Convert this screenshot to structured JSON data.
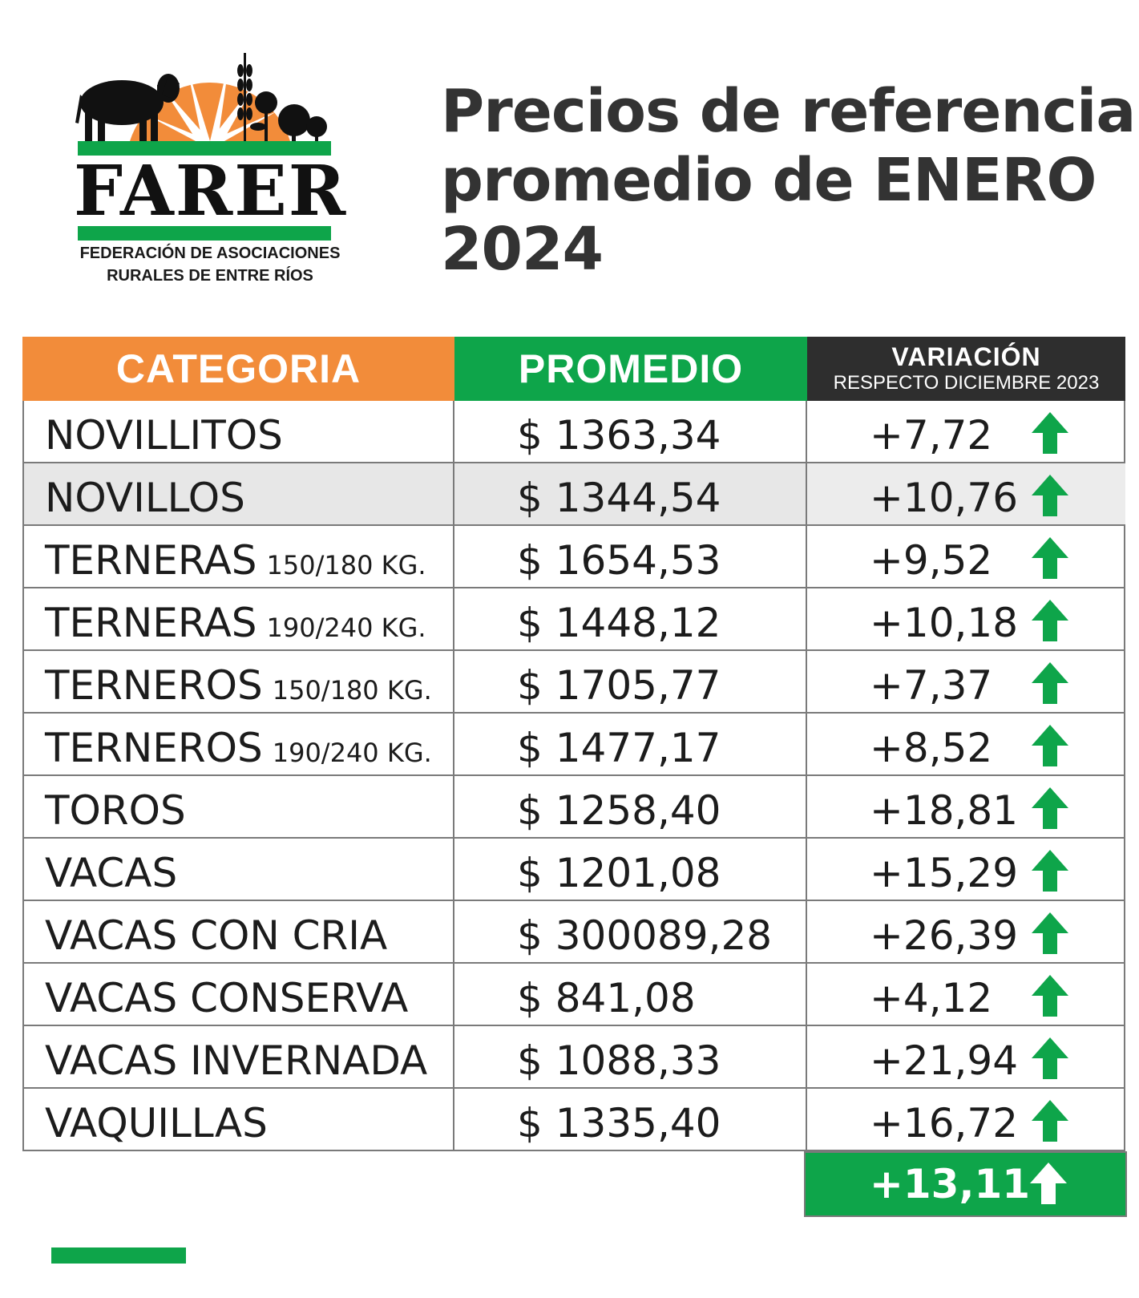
{
  "logo": {
    "name": "FARER",
    "subtitle_line1": "FEDERACIÓN DE ASOCIACIONES",
    "subtitle_line2": "RURALES DE ENTRE RÍOS",
    "colors": {
      "sun": "#f28c3a",
      "green": "#0ea54a",
      "black": "#111111"
    }
  },
  "title": {
    "line1": "Precios de referencia",
    "line2": "promedio de ENERO",
    "line3": "2024"
  },
  "table": {
    "headers": {
      "categoria": "CATEGORIA",
      "promedio": "PROMEDIO",
      "variacion": "VARIACIÓN",
      "variacion_sub": "RESPECTO DICIEMBRE 2023"
    },
    "colors": {
      "categoria": "#f28c3a",
      "promedio": "#0ea54a",
      "variacion": "#2e2e2e",
      "arrow_up": "#0ea54a"
    },
    "rows": [
      {
        "categoria": "NOVILLITOS",
        "detalle": "",
        "promedio": "$ 1363,34",
        "variacion": "+7,72",
        "trend": "up"
      },
      {
        "categoria": "NOVILLOS",
        "detalle": "",
        "promedio": "$ 1344,54",
        "variacion": "+10,76",
        "trend": "up"
      },
      {
        "categoria": "TERNERAS",
        "detalle": "150/180 KG.",
        "promedio": "$ 1654,53",
        "variacion": "+9,52",
        "trend": "up"
      },
      {
        "categoria": "TERNERAS",
        "detalle": "190/240 KG.",
        "promedio": "$ 1448,12",
        "variacion": "+10,18",
        "trend": "up"
      },
      {
        "categoria": "TERNEROS",
        "detalle": "150/180 KG.",
        "promedio": "$ 1705,77",
        "variacion": "+7,37",
        "trend": "up"
      },
      {
        "categoria": "TERNEROS",
        "detalle": "190/240 KG.",
        "promedio": "$ 1477,17",
        "variacion": "+8,52",
        "trend": "up"
      },
      {
        "categoria": "TOROS",
        "detalle": "",
        "promedio": "$ 1258,40",
        "variacion": "+18,81",
        "trend": "up"
      },
      {
        "categoria": "VACAS",
        "detalle": "",
        "promedio": "$ 1201,08",
        "variacion": "+15,29",
        "trend": "up"
      },
      {
        "categoria": "VACAS CON CRIA",
        "detalle": "",
        "promedio": "$ 300089,28",
        "variacion": "+26,39",
        "trend": "up"
      },
      {
        "categoria": "VACAS CONSERVA",
        "detalle": "",
        "promedio": "$ 841,08",
        "variacion": "+4,12",
        "trend": "up"
      },
      {
        "categoria": "VACAS INVERNADA",
        "detalle": "",
        "promedio": "$ 1088,33",
        "variacion": "+21,94",
        "trend": "up"
      },
      {
        "categoria": "VAQUILLAS",
        "detalle": "",
        "promedio": "$ 1335,40",
        "variacion": "+16,72",
        "trend": "up"
      }
    ],
    "total": {
      "variacion": "+13,11",
      "trend": "up"
    }
  }
}
